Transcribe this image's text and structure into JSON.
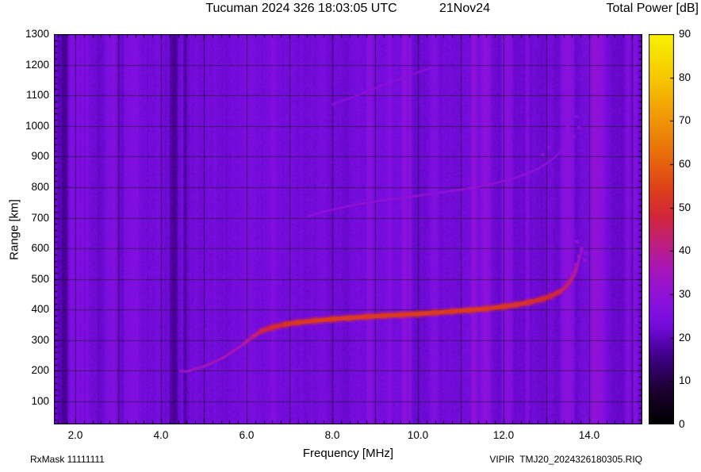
{
  "header": {
    "title": "Tucuman 2024 326 18:03:05 UTC",
    "date_label": "21Nov24",
    "colorbar_title": "Total Power [dB]"
  },
  "footer": {
    "rx_mask": "RxMask 11111111",
    "file_label": "VIPIR  TMJ20_2024326180305.RIQ"
  },
  "axes": {
    "x_label": "Frequency [MHz]",
    "y_label": "Range [km]",
    "x_tick_labels": [
      "2.0",
      "4.0",
      "6.0",
      "8.0",
      "10.0",
      "12.0",
      "14.0"
    ],
    "x_tick_values": [
      2,
      4,
      6,
      8,
      10,
      12,
      14
    ],
    "y_tick_labels": [
      "1300",
      "1200",
      "1100",
      "1000",
      "900",
      "800",
      "700",
      "600",
      "500",
      "400",
      "300",
      "200",
      "100"
    ],
    "y_tick_values": [
      1300,
      1200,
      1100,
      1000,
      900,
      800,
      700,
      600,
      500,
      400,
      300,
      200,
      100
    ]
  },
  "colorbar": {
    "title": "Total Power [dB]",
    "min": 0,
    "max": 90,
    "tick_labels": [
      "0",
      "10",
      "20",
      "30",
      "40",
      "50",
      "60",
      "70",
      "80",
      "90"
    ],
    "tick_values": [
      0,
      10,
      20,
      30,
      40,
      50,
      60,
      70,
      80,
      90
    ]
  },
  "chart_data": {
    "type": "heatmap",
    "title": "Tucuman 2024 326 18:03:05 UTC",
    "station": "Tucuman",
    "timestamp": "2024 326 18:03:05 UTC",
    "date": "21Nov24",
    "instrument_file": "VIPIR  TMJ20_2024326180305.RIQ",
    "rx_mask": "RxMask 11111111",
    "xlabel": "Frequency [MHz]",
    "ylabel": "Range [km]",
    "zlabel": "Total Power [dB]",
    "xlim": [
      1.5,
      15.24
    ],
    "ylim": [
      25,
      1300
    ],
    "zlim": [
      0,
      90
    ],
    "grid": {
      "x_step_mhz": 1,
      "y_step_km": 100
    },
    "background_db": 23,
    "noise_seed": 1234,
    "colormap_stops": [
      {
        "v": 0,
        "color": "#000000"
      },
      {
        "v": 8,
        "color": "#1c0030"
      },
      {
        "v": 15,
        "color": "#3c0080"
      },
      {
        "v": 20,
        "color": "#5f06c0"
      },
      {
        "v": 24,
        "color": "#7b0ee2"
      },
      {
        "v": 30,
        "color": "#9012d8"
      },
      {
        "v": 36,
        "color": "#a816b8"
      },
      {
        "v": 42,
        "color": "#c01f7a"
      },
      {
        "v": 48,
        "color": "#d22638"
      },
      {
        "v": 55,
        "color": "#df4418"
      },
      {
        "v": 62,
        "color": "#e86c0c"
      },
      {
        "v": 70,
        "color": "#f09406"
      },
      {
        "v": 80,
        "color": "#f7c800"
      },
      {
        "v": 90,
        "color": "#f8f200"
      }
    ],
    "echo_traces": [
      {
        "name": "first-hop-echo",
        "points": [
          [
            4.45,
            200,
            33
          ],
          [
            4.6,
            198,
            34
          ],
          [
            4.8,
            206,
            34
          ],
          [
            5.0,
            214,
            35
          ],
          [
            5.2,
            226,
            35
          ],
          [
            5.45,
            243,
            36
          ],
          [
            5.7,
            265,
            36
          ],
          [
            5.95,
            290,
            37
          ],
          [
            6.15,
            312,
            40
          ],
          [
            6.35,
            330,
            45
          ],
          [
            6.6,
            342,
            48
          ],
          [
            6.9,
            352,
            50
          ],
          [
            7.2,
            358,
            52
          ],
          [
            7.6,
            364,
            52
          ],
          [
            8.0,
            369,
            53
          ],
          [
            8.4,
            373,
            52
          ],
          [
            8.8,
            377,
            53
          ],
          [
            9.2,
            380,
            52
          ],
          [
            9.6,
            383,
            53
          ],
          [
            10.0,
            386,
            52
          ],
          [
            10.4,
            390,
            53
          ],
          [
            10.8,
            394,
            52
          ],
          [
            11.2,
            398,
            53
          ],
          [
            11.6,
            403,
            52
          ],
          [
            12.0,
            410,
            52
          ],
          [
            12.3,
            416,
            51
          ],
          [
            12.6,
            424,
            50
          ],
          [
            12.9,
            434,
            49
          ],
          [
            13.1,
            444,
            48
          ],
          [
            13.3,
            458,
            46
          ],
          [
            13.45,
            474,
            44
          ],
          [
            13.55,
            492,
            42
          ],
          [
            13.65,
            515,
            40
          ],
          [
            13.72,
            545,
            37
          ],
          [
            13.78,
            572,
            35
          ],
          [
            13.82,
            595,
            33
          ]
        ]
      },
      {
        "name": "second-hop-echo",
        "points": [
          [
            7.45,
            705,
            30
          ],
          [
            7.8,
            720,
            30
          ],
          [
            8.2,
            733,
            30
          ],
          [
            8.6,
            744,
            31
          ],
          [
            9.0,
            753,
            31
          ],
          [
            9.4,
            761,
            30
          ],
          [
            9.8,
            768,
            31
          ],
          [
            10.2,
            776,
            31
          ],
          [
            10.6,
            784,
            31
          ],
          [
            11.0,
            792,
            31
          ],
          [
            11.4,
            801,
            31
          ],
          [
            11.8,
            813,
            31
          ],
          [
            12.2,
            827,
            30
          ],
          [
            12.5,
            842,
            30
          ],
          [
            12.8,
            860,
            30
          ],
          [
            13.0,
            877,
            30
          ],
          [
            13.2,
            898,
            29
          ],
          [
            13.35,
            920,
            29
          ],
          [
            13.5,
            950,
            29
          ],
          [
            13.6,
            975,
            28
          ]
        ]
      },
      {
        "name": "upper-faint-streak",
        "points": [
          [
            8.0,
            1070,
            28
          ],
          [
            8.6,
            1100,
            28
          ],
          [
            9.2,
            1135,
            29
          ],
          [
            9.8,
            1165,
            28
          ],
          [
            10.3,
            1190,
            28
          ]
        ]
      }
    ],
    "scatter_blocks": [
      [
        13.6,
        515,
        36
      ],
      [
        13.68,
        545,
        34
      ],
      [
        13.75,
        575,
        33
      ],
      [
        13.82,
        600,
        32
      ],
      [
        13.88,
        562,
        31
      ],
      [
        13.7,
        622,
        30
      ],
      [
        13.9,
        585,
        30
      ],
      [
        13.45,
        935,
        29
      ],
      [
        13.5,
        1000,
        29
      ],
      [
        13.62,
        965,
        29
      ],
      [
        13.68,
        1030,
        28
      ],
      [
        13.75,
        995,
        28
      ],
      [
        12.9,
        905,
        28
      ],
      [
        13.05,
        930,
        28
      ]
    ],
    "rfi_stripes": [
      {
        "f": 6.62,
        "w": 0.1,
        "dv": 3
      },
      {
        "f": 8.85,
        "w": 0.12,
        "dv": 5
      },
      {
        "f": 9.33,
        "w": 0.08,
        "dv": 3
      },
      {
        "f": 9.68,
        "w": 0.1,
        "dv": 6
      },
      {
        "f": 9.8,
        "w": 0.08,
        "dv": 5
      },
      {
        "f": 10.38,
        "w": 0.15,
        "dv": 3
      },
      {
        "f": 11.3,
        "w": 0.12,
        "dv": 6
      },
      {
        "f": 11.58,
        "w": 0.18,
        "dv": 6
      },
      {
        "f": 12.07,
        "w": 0.22,
        "dv": 6
      },
      {
        "f": 12.55,
        "w": 0.08,
        "dv": 3
      },
      {
        "f": 13.48,
        "w": 0.25,
        "dv": 7
      },
      {
        "f": 14.18,
        "w": 0.28,
        "dv": 7
      },
      {
        "f": 14.9,
        "w": 0.1,
        "dv": 4
      },
      {
        "f": 15.05,
        "w": 0.12,
        "dv": 4
      }
    ],
    "dark_bands": [
      {
        "f": 1.62,
        "w": 0.3,
        "dv": -3
      },
      {
        "f": 1.75,
        "w": 0.1,
        "dv": -4
      },
      {
        "f": 2.55,
        "w": 0.08,
        "dv": -2
      },
      {
        "f": 3.05,
        "w": 0.1,
        "dv": -3
      },
      {
        "f": 3.5,
        "w": 0.06,
        "dv": -2
      },
      {
        "f": 4.28,
        "w": 0.18,
        "dv": -5
      },
      {
        "f": 4.55,
        "w": 0.06,
        "dv": -3
      }
    ]
  }
}
